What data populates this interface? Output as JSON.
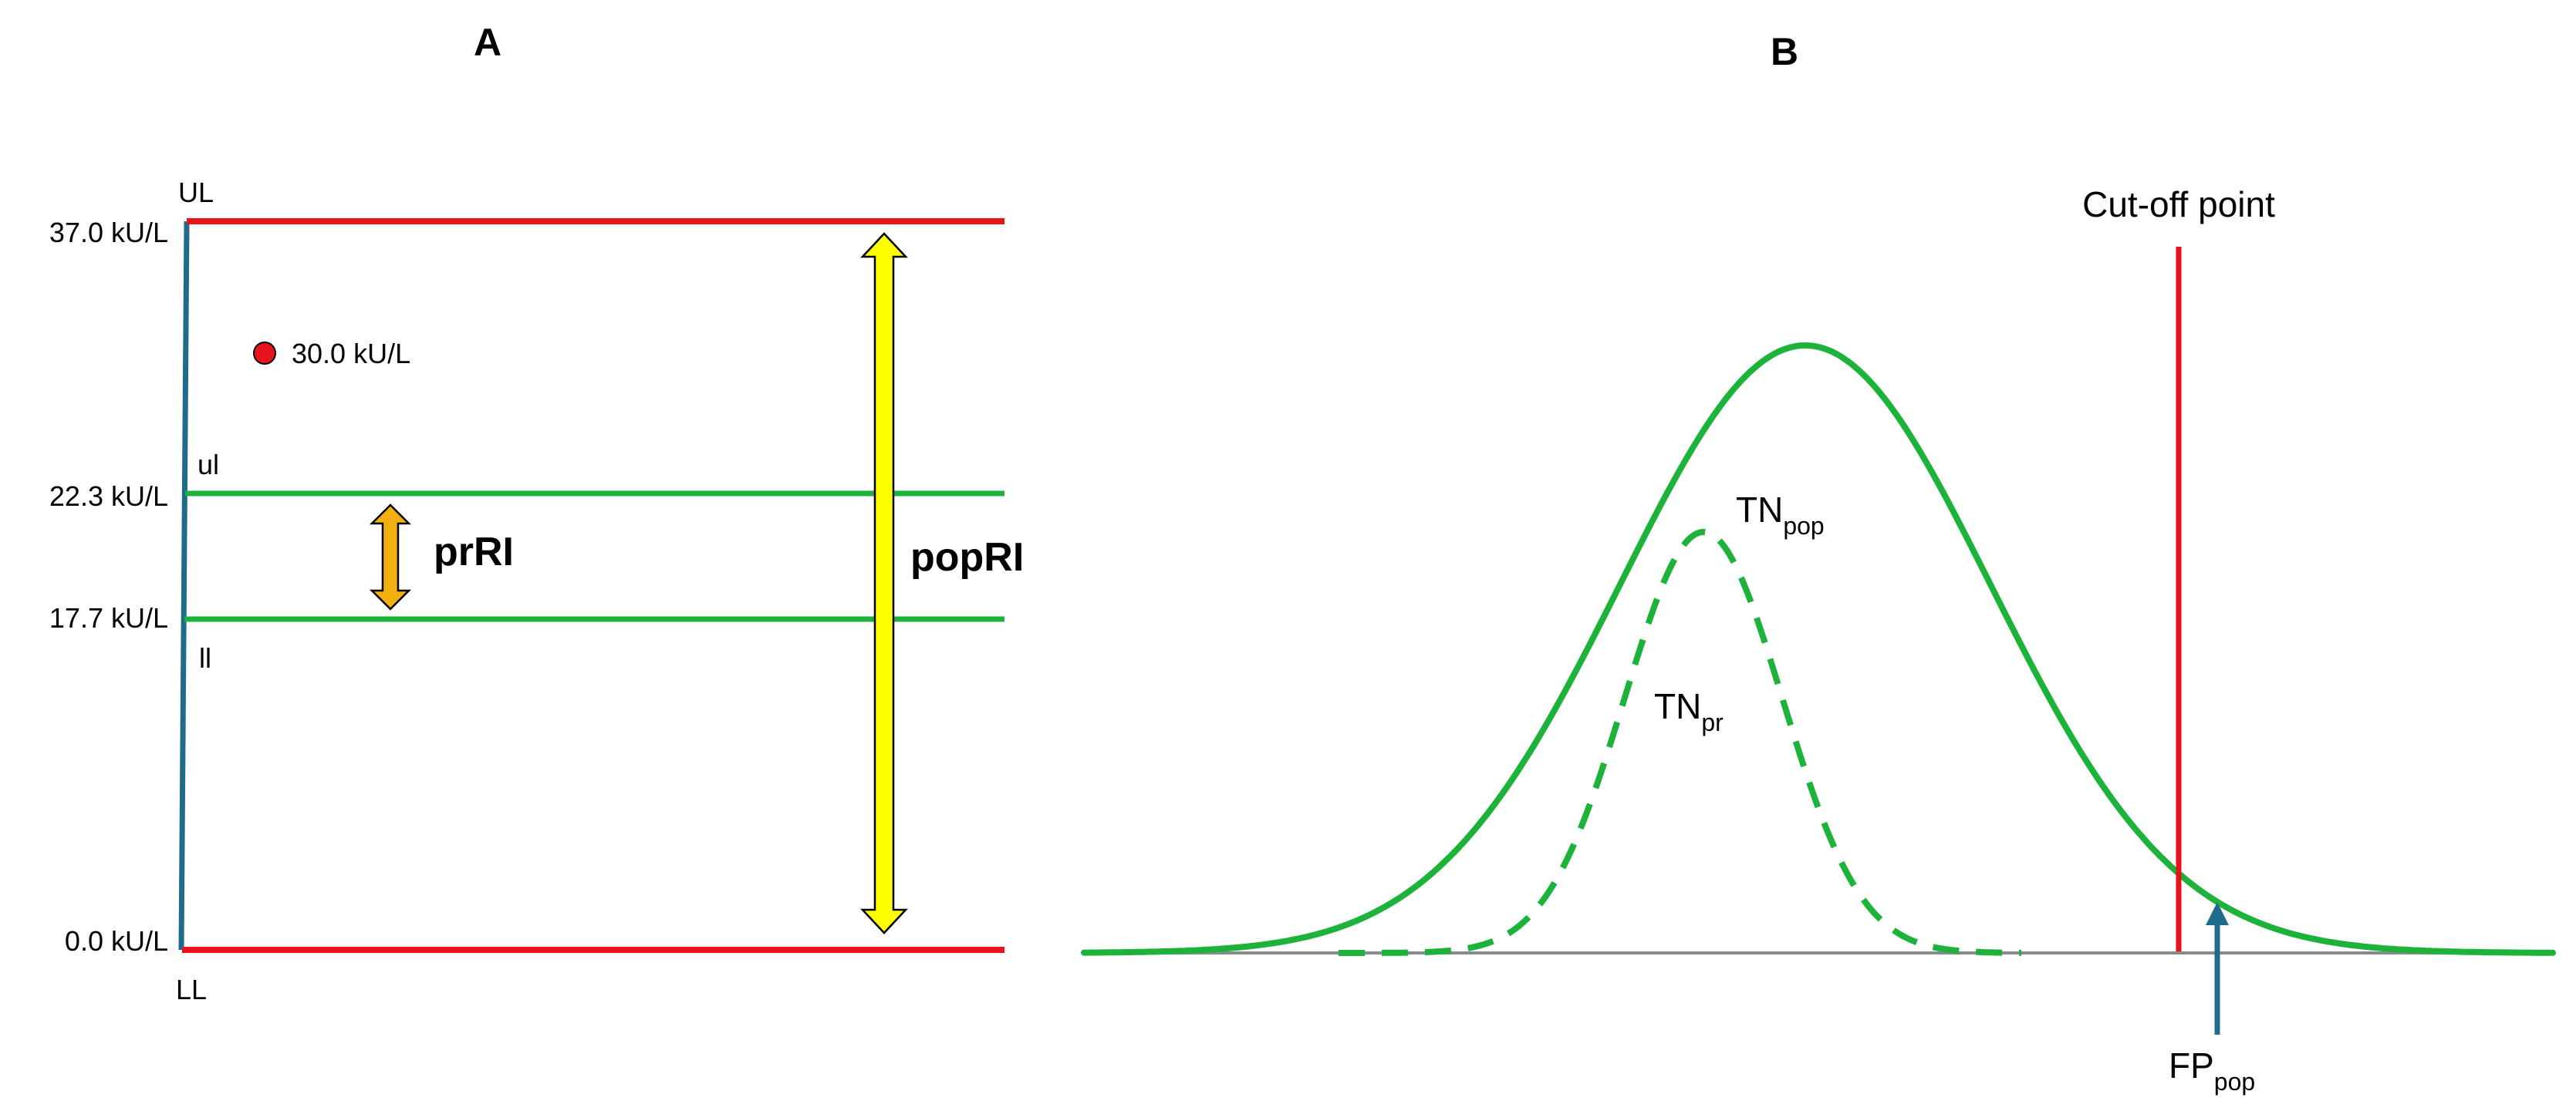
{
  "panel_a": {
    "label": "A",
    "levels": {
      "top": "37.0 kU/L",
      "upper": "22.3 kU/L",
      "lower": "17.7 kU/L",
      "bottom": "0.0 kU/L"
    },
    "limit_labels": {
      "UL": "UL",
      "ul": "ul",
      "ll": "ll",
      "LL": "LL"
    },
    "point_label": "30.0 kU/L",
    "personal_interval_label": "prRI",
    "population_interval_label": "popRI"
  },
  "panel_b": {
    "label": "B",
    "cutoff_label": "Cut-off point",
    "tn_pop": {
      "main": "TN",
      "sub": "pop"
    },
    "tn_pr": {
      "main": "TN",
      "sub": "pr"
    },
    "fp_pop": {
      "main": "FP",
      "sub": "pop"
    }
  },
  "colors": {
    "red_limit": "#e8141c",
    "green": "#1db33a",
    "axis_blue": "#1f6b8c",
    "yellow_arrow": "#ffff00",
    "orange_arrow": "#f2b00f",
    "point": "#e8141c",
    "baseline": "#8a8a8a"
  }
}
